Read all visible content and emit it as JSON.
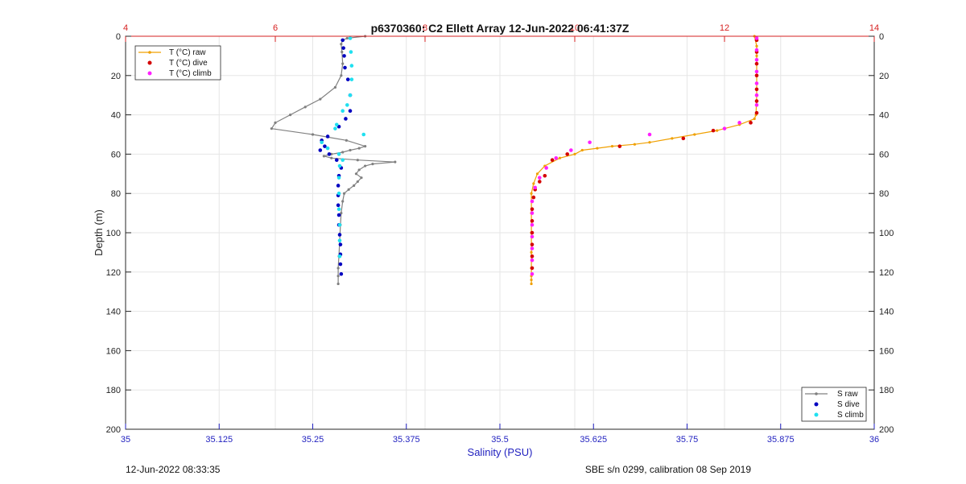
{
  "chart_data": {
    "type": "scatter",
    "title": "p6370360: C2 Ellett Array 12-Jun-2022 06:41:37Z",
    "xlabel": "Salinity (PSU)",
    "ylabel": "Depth (m)",
    "footer_left": "12-Jun-2022 08:33:35",
    "footer_right": "SBE s/n 0299, calibration 08 Sep 2019",
    "grid": true,
    "xlim": [
      35,
      36
    ],
    "x_top_lim": [
      4,
      14
    ],
    "ylim": [
      0,
      200
    ],
    "y_reversed": true,
    "x_ticks": [
      "35",
      "35.125",
      "35.25",
      "35.375",
      "35.5",
      "35.625",
      "35.75",
      "35.875",
      "36"
    ],
    "x_top_ticks": [
      "4",
      "6",
      "8",
      "10",
      "12",
      "14"
    ],
    "y_ticks": [
      "0",
      "20",
      "40",
      "60",
      "80",
      "100",
      "120",
      "140",
      "160",
      "180",
      "200"
    ],
    "legend_temperature": {
      "placement": "top-left",
      "entries": [
        "T (°C) raw",
        "T (°C) dive",
        "T (°C) climb"
      ]
    },
    "legend_salinity": {
      "placement": "bottom-right",
      "entries": [
        "S raw",
        "S dive",
        "S climb"
      ]
    },
    "colors": {
      "t_raw": "#f0a000",
      "t_dive": "#d40000",
      "t_climb": "#ff20ff",
      "s_raw": "#808080",
      "s_dive": "#0000c0",
      "s_climb": "#20e0f0",
      "axis_bottom": "#1f1fbf",
      "axis_top": "#d62020",
      "grid": "#e6e6e6"
    },
    "series": [
      {
        "name": "T (°C) raw",
        "axis": "top",
        "style": "line",
        "x": [
          12.4,
          12.43,
          12.43,
          12.43,
          12.43,
          12.42,
          12.4,
          12.2,
          11.9,
          11.6,
          11.3,
          11.0,
          10.8,
          10.5,
          10.3,
          10.1,
          10.0,
          9.8,
          9.6,
          9.5,
          9.45,
          9.42,
          9.42,
          9.42,
          9.42,
          9.42,
          9.42,
          9.42,
          9.42
        ],
        "y": [
          0,
          5,
          10,
          20,
          30,
          40,
          42,
          45,
          48,
          50,
          52,
          54,
          55,
          56,
          57,
          58,
          60,
          62,
          66,
          70,
          75,
          80,
          90,
          100,
          110,
          118,
          122,
          124,
          126
        ]
      },
      {
        "name": "T (°C) dive",
        "axis": "top",
        "style": "points",
        "x": [
          12.43,
          12.43,
          12.43,
          12.43,
          12.43,
          12.43,
          12.43,
          12.35,
          11.85,
          11.45,
          10.6,
          9.9,
          9.7,
          9.6,
          9.53,
          9.47,
          9.45,
          9.43,
          9.43,
          9.43,
          9.43,
          9.43,
          9.43
        ],
        "y": [
          2,
          8,
          14,
          20,
          27,
          33,
          39,
          44,
          48,
          52,
          56,
          60,
          63,
          71,
          74,
          78,
          82,
          88,
          94,
          100,
          106,
          112,
          118
        ]
      },
      {
        "name": "T (°C) climb",
        "axis": "top",
        "style": "points",
        "x": [
          12.43,
          12.43,
          12.43,
          12.43,
          12.43,
          12.43,
          12.43,
          12.2,
          12.0,
          11.0,
          10.2,
          9.95,
          9.75,
          9.62,
          9.53,
          9.47,
          9.43,
          9.43,
          9.43,
          9.43,
          9.43,
          9.43,
          9.43
        ],
        "y": [
          1,
          7,
          12,
          18,
          24,
          30,
          35,
          44,
          47,
          50,
          54,
          58,
          62,
          67,
          72,
          77,
          84,
          90,
          96,
          102,
          108,
          114,
          121
        ]
      },
      {
        "name": "S raw",
        "axis": "bottom",
        "style": "line",
        "x": [
          35.32,
          35.296,
          35.29,
          35.288,
          35.289,
          35.29,
          35.288,
          35.28,
          35.26,
          35.24,
          35.22,
          35.2,
          35.195,
          35.25,
          35.295,
          35.32,
          35.312,
          35.3,
          35.29,
          35.275,
          35.265,
          35.275,
          35.31,
          35.36,
          35.33,
          35.32,
          35.312,
          35.308,
          35.315,
          35.31,
          35.305,
          35.298,
          35.292,
          35.29,
          35.288,
          35.287,
          35.286,
          35.285,
          35.284,
          35.284,
          35.284
        ],
        "y": [
          0,
          1,
          2,
          4,
          8,
          14,
          20,
          26,
          32,
          36,
          40,
          44,
          47,
          50,
          53,
          56,
          57,
          58,
          59,
          60,
          61,
          62,
          63,
          64,
          65,
          66,
          68,
          70,
          72,
          74,
          76,
          78,
          80,
          84,
          90,
          96,
          104,
          112,
          118,
          122,
          126
        ]
      },
      {
        "name": "S dive",
        "axis": "bottom",
        "style": "points",
        "x": [
          35.29,
          35.291,
          35.292,
          35.293,
          35.297,
          35.3,
          35.3,
          35.294,
          35.285,
          35.27,
          35.262,
          35.266,
          35.26,
          35.272,
          35.282,
          35.288,
          35.285,
          35.284,
          35.284,
          35.284,
          35.285,
          35.285,
          35.286,
          35.287,
          35.287,
          35.287,
          35.288
        ],
        "y": [
          2,
          6,
          10,
          16,
          22,
          30,
          38,
          42,
          46,
          51,
          53,
          56,
          58,
          60,
          63,
          67,
          71,
          76,
          81,
          86,
          91,
          96,
          101,
          106,
          111,
          116,
          121
        ]
      },
      {
        "name": "S climb",
        "axis": "bottom",
        "style": "points",
        "x": [
          35.3,
          35.301,
          35.302,
          35.302,
          35.3,
          35.296,
          35.29,
          35.282,
          35.28,
          35.318,
          35.262,
          35.27,
          35.285,
          35.29,
          35.286,
          35.285,
          35.285,
          35.285,
          35.286,
          35.286,
          35.286
        ],
        "y": [
          1,
          8,
          15,
          22,
          30,
          35,
          38,
          45,
          47,
          50,
          54,
          57,
          60,
          63,
          66,
          72,
          80,
          88,
          96,
          104,
          112
        ]
      }
    ]
  }
}
